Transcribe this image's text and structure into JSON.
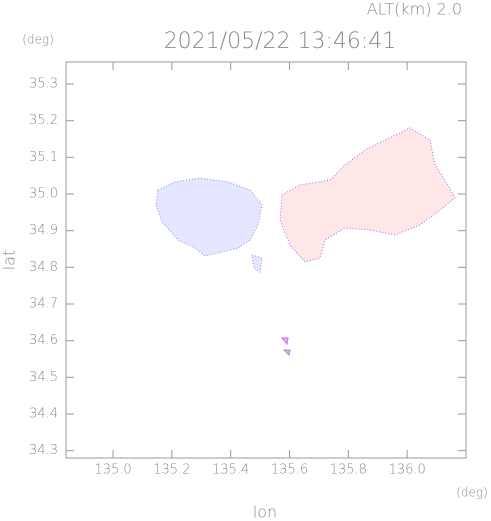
{
  "chart_data": {
    "type": "map",
    "title": "2021/05/22 13:46:41",
    "subtitle": "ALT(km) 2.0",
    "x_label": "lon",
    "y_label": "lat",
    "x_unit": "(deg)",
    "y_unit": "(deg)",
    "xlim": [
      134.84,
      136.2
    ],
    "ylim": [
      34.28,
      35.36
    ],
    "xticks": [
      {
        "value": 135.0,
        "label": "135.0"
      },
      135.2,
      135.4,
      135.6,
      135.8,
      {
        "value": 136.0,
        "label": "136.0"
      }
    ],
    "yticks": [
      34.3,
      34.4,
      34.5,
      34.6,
      34.7,
      34.8,
      34.9,
      {
        "value": 35.0,
        "label": "35.0"
      },
      35.1,
      35.2,
      35.3
    ]
  }
}
